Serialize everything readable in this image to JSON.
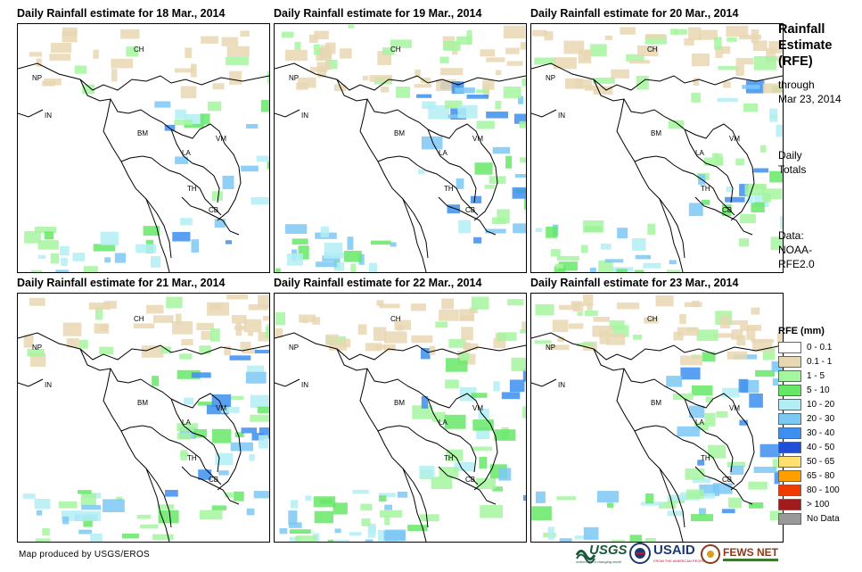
{
  "panels": [
    {
      "title": "Daily Rainfall estimate for 18 Mar., 2014",
      "rain_coverage": "light"
    },
    {
      "title": "Daily Rainfall estimate for 19 Mar., 2014",
      "rain_coverage": "moderate"
    },
    {
      "title": "Daily Rainfall estimate for 20 Mar., 2014",
      "rain_coverage": "moderate"
    },
    {
      "title": "Daily Rainfall estimate for 21 Mar., 2014",
      "rain_coverage": "moderate"
    },
    {
      "title": "Daily Rainfall estimate for 22 Mar., 2014",
      "rain_coverage": "moderate"
    },
    {
      "title": "Daily Rainfall estimate for 23 Mar., 2014",
      "rain_coverage": "moderate"
    }
  ],
  "country_labels": [
    "CH",
    "NP",
    "IN",
    "BM",
    "LA",
    "VM",
    "TH",
    "CB"
  ],
  "sidebar": {
    "title_lines": [
      "Rainfall",
      "Estimate",
      "(RFE)"
    ],
    "through_lines": [
      "through",
      "Mar 23, 2014"
    ],
    "totals_lines": [
      "Daily",
      "Totals"
    ],
    "data_lines": [
      "Data:",
      "NOAA-",
      "RFE2.0"
    ]
  },
  "legend": {
    "title": "RFE (mm)",
    "items": [
      {
        "label": "0 - 0.1",
        "color": "#ffffff"
      },
      {
        "label": "0.1 - 1",
        "color": "#e8d7b3"
      },
      {
        "label": "1 - 5",
        "color": "#a6f5a0"
      },
      {
        "label": "5 - 10",
        "color": "#66e866"
      },
      {
        "label": "10 - 20",
        "color": "#b3eef5"
      },
      {
        "label": "20 - 30",
        "color": "#7cc8f5"
      },
      {
        "label": "30 - 40",
        "color": "#3d8ff0"
      },
      {
        "label": "40 - 50",
        "color": "#1f4fd6"
      },
      {
        "label": "50 - 65",
        "color": "#ffe070"
      },
      {
        "label": "65 - 80",
        "color": "#ffa000"
      },
      {
        "label": "80 - 100",
        "color": "#f03c00"
      },
      {
        "label": "> 100",
        "color": "#a01c1c"
      },
      {
        "label": "No Data",
        "color": "#999999"
      }
    ]
  },
  "credit": "Map produced by USGS/EROS",
  "logos": [
    {
      "name": "USGS",
      "tagline": "science for a changing world"
    },
    {
      "name": "USAID",
      "tagline": "FROM THE AMERICAN PEOPLE"
    },
    {
      "name": "FEWS NET",
      "tagline": ""
    }
  ]
}
